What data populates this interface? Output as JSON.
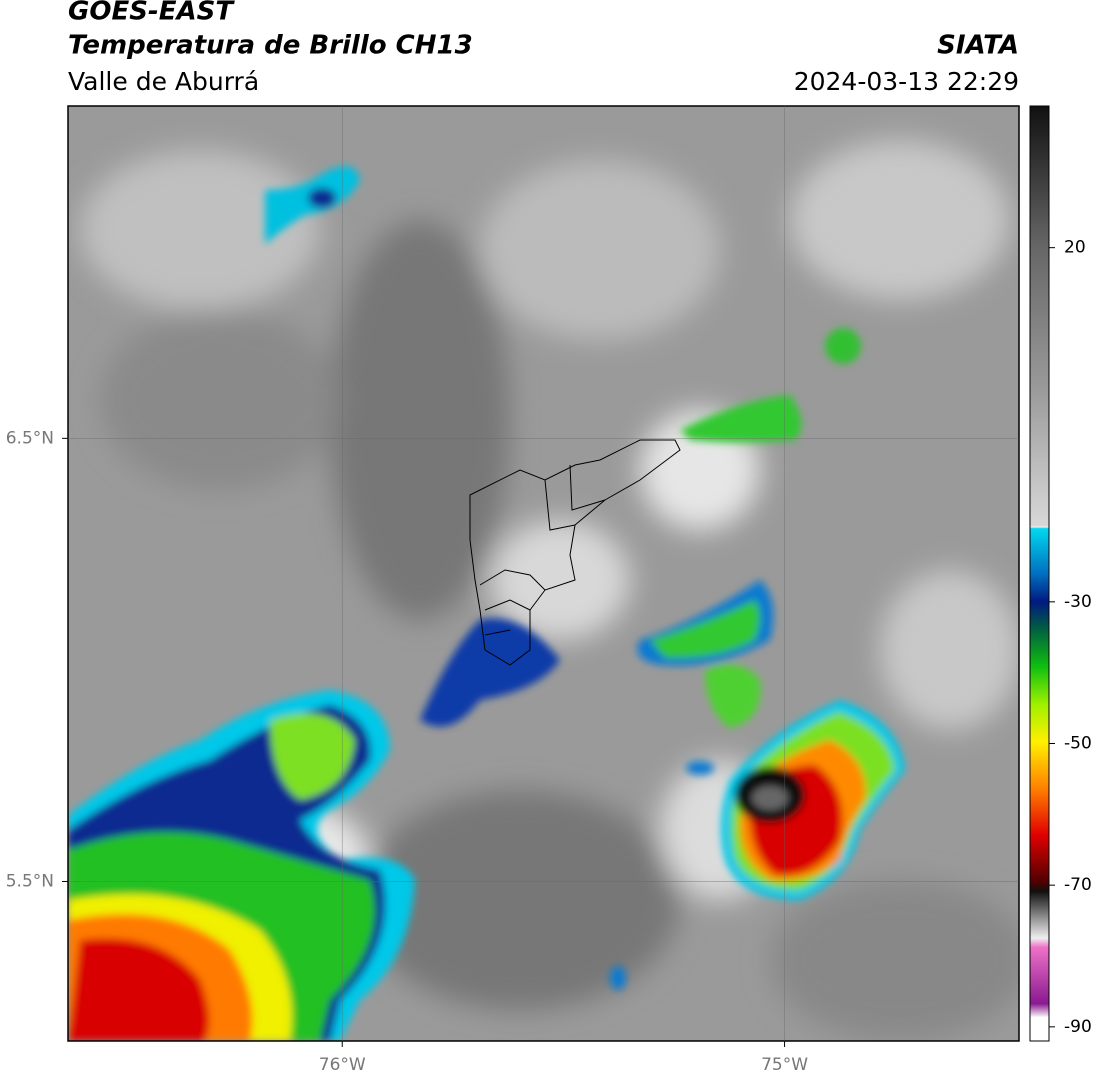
{
  "map": {
    "title": "GOES-EAST",
    "subtitle": "Temperatura de Brillo CH13",
    "region": "Valle de Aburrá",
    "source": "SIATA",
    "timestamp": "2024-03-13 22:29",
    "xlim": [
      -76.62,
      -74.47
    ],
    "ylim": [
      5.14,
      7.25
    ],
    "xticks": [
      {
        "value": -76,
        "label": "76°W"
      },
      {
        "value": -75,
        "label": "75°W"
      }
    ],
    "yticks": [
      {
        "value": 6.5,
        "label": "6.5°N"
      },
      {
        "value": 5.5,
        "label": "5.5°N"
      }
    ],
    "grid": true,
    "colorbar": {
      "lim": [
        -92,
        40
      ],
      "ticks": [
        20,
        -30,
        -50,
        -70,
        -90
      ]
    }
  }
}
